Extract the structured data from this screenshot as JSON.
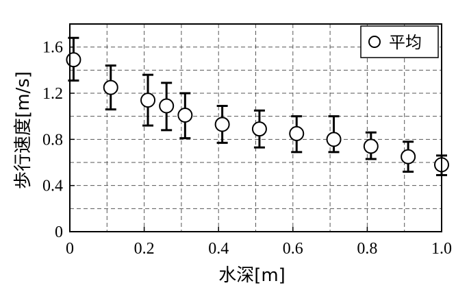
{
  "chart_data": {
    "type": "scatter",
    "title": "",
    "xlabel": "水深[m]",
    "ylabel": "歩行速度[m/s]",
    "xlim": [
      0,
      1.0
    ],
    "ylim": [
      0,
      1.8
    ],
    "x_ticks": [
      0,
      0.2,
      0.4,
      0.6,
      0.8,
      1.0
    ],
    "x_tick_labels": [
      "0",
      "0.2",
      "0.4",
      "0.6",
      "0.8",
      "1.0"
    ],
    "y_ticks": [
      0,
      0.4,
      0.8,
      1.2,
      1.6
    ],
    "y_tick_labels": [
      "0",
      "0.4",
      "0.8",
      "1.2",
      "1.6"
    ],
    "x_minor_grid": [
      0.1,
      0.3,
      0.5,
      0.7,
      0.9
    ],
    "y_minor_grid": [
      0.2,
      0.6,
      1.0,
      1.4
    ],
    "grid": true,
    "grid_style": "dashed",
    "legend_position": "top-right",
    "series": [
      {
        "name": "平均",
        "marker": "open-circle",
        "points": [
          {
            "x": 0.01,
            "y": 1.49,
            "err_low": 1.31,
            "err_high": 1.68
          },
          {
            "x": 0.11,
            "y": 1.25,
            "err_low": 1.06,
            "err_high": 1.44
          },
          {
            "x": 0.21,
            "y": 1.14,
            "err_low": 0.92,
            "err_high": 1.36
          },
          {
            "x": 0.26,
            "y": 1.09,
            "err_low": 0.88,
            "err_high": 1.29
          },
          {
            "x": 0.31,
            "y": 1.01,
            "err_low": 0.81,
            "err_high": 1.2
          },
          {
            "x": 0.41,
            "y": 0.93,
            "err_low": 0.77,
            "err_high": 1.09
          },
          {
            "x": 0.51,
            "y": 0.89,
            "err_low": 0.73,
            "err_high": 1.05
          },
          {
            "x": 0.61,
            "y": 0.85,
            "err_low": 0.69,
            "err_high": 1.0
          },
          {
            "x": 0.71,
            "y": 0.8,
            "err_low": 0.69,
            "err_high": 1.0
          },
          {
            "x": 0.81,
            "y": 0.74,
            "err_low": 0.63,
            "err_high": 0.86
          },
          {
            "x": 0.91,
            "y": 0.65,
            "err_low": 0.52,
            "err_high": 0.78
          },
          {
            "x": 1.0,
            "y": 0.58,
            "err_low": 0.49,
            "err_high": 0.66
          }
        ]
      }
    ]
  }
}
